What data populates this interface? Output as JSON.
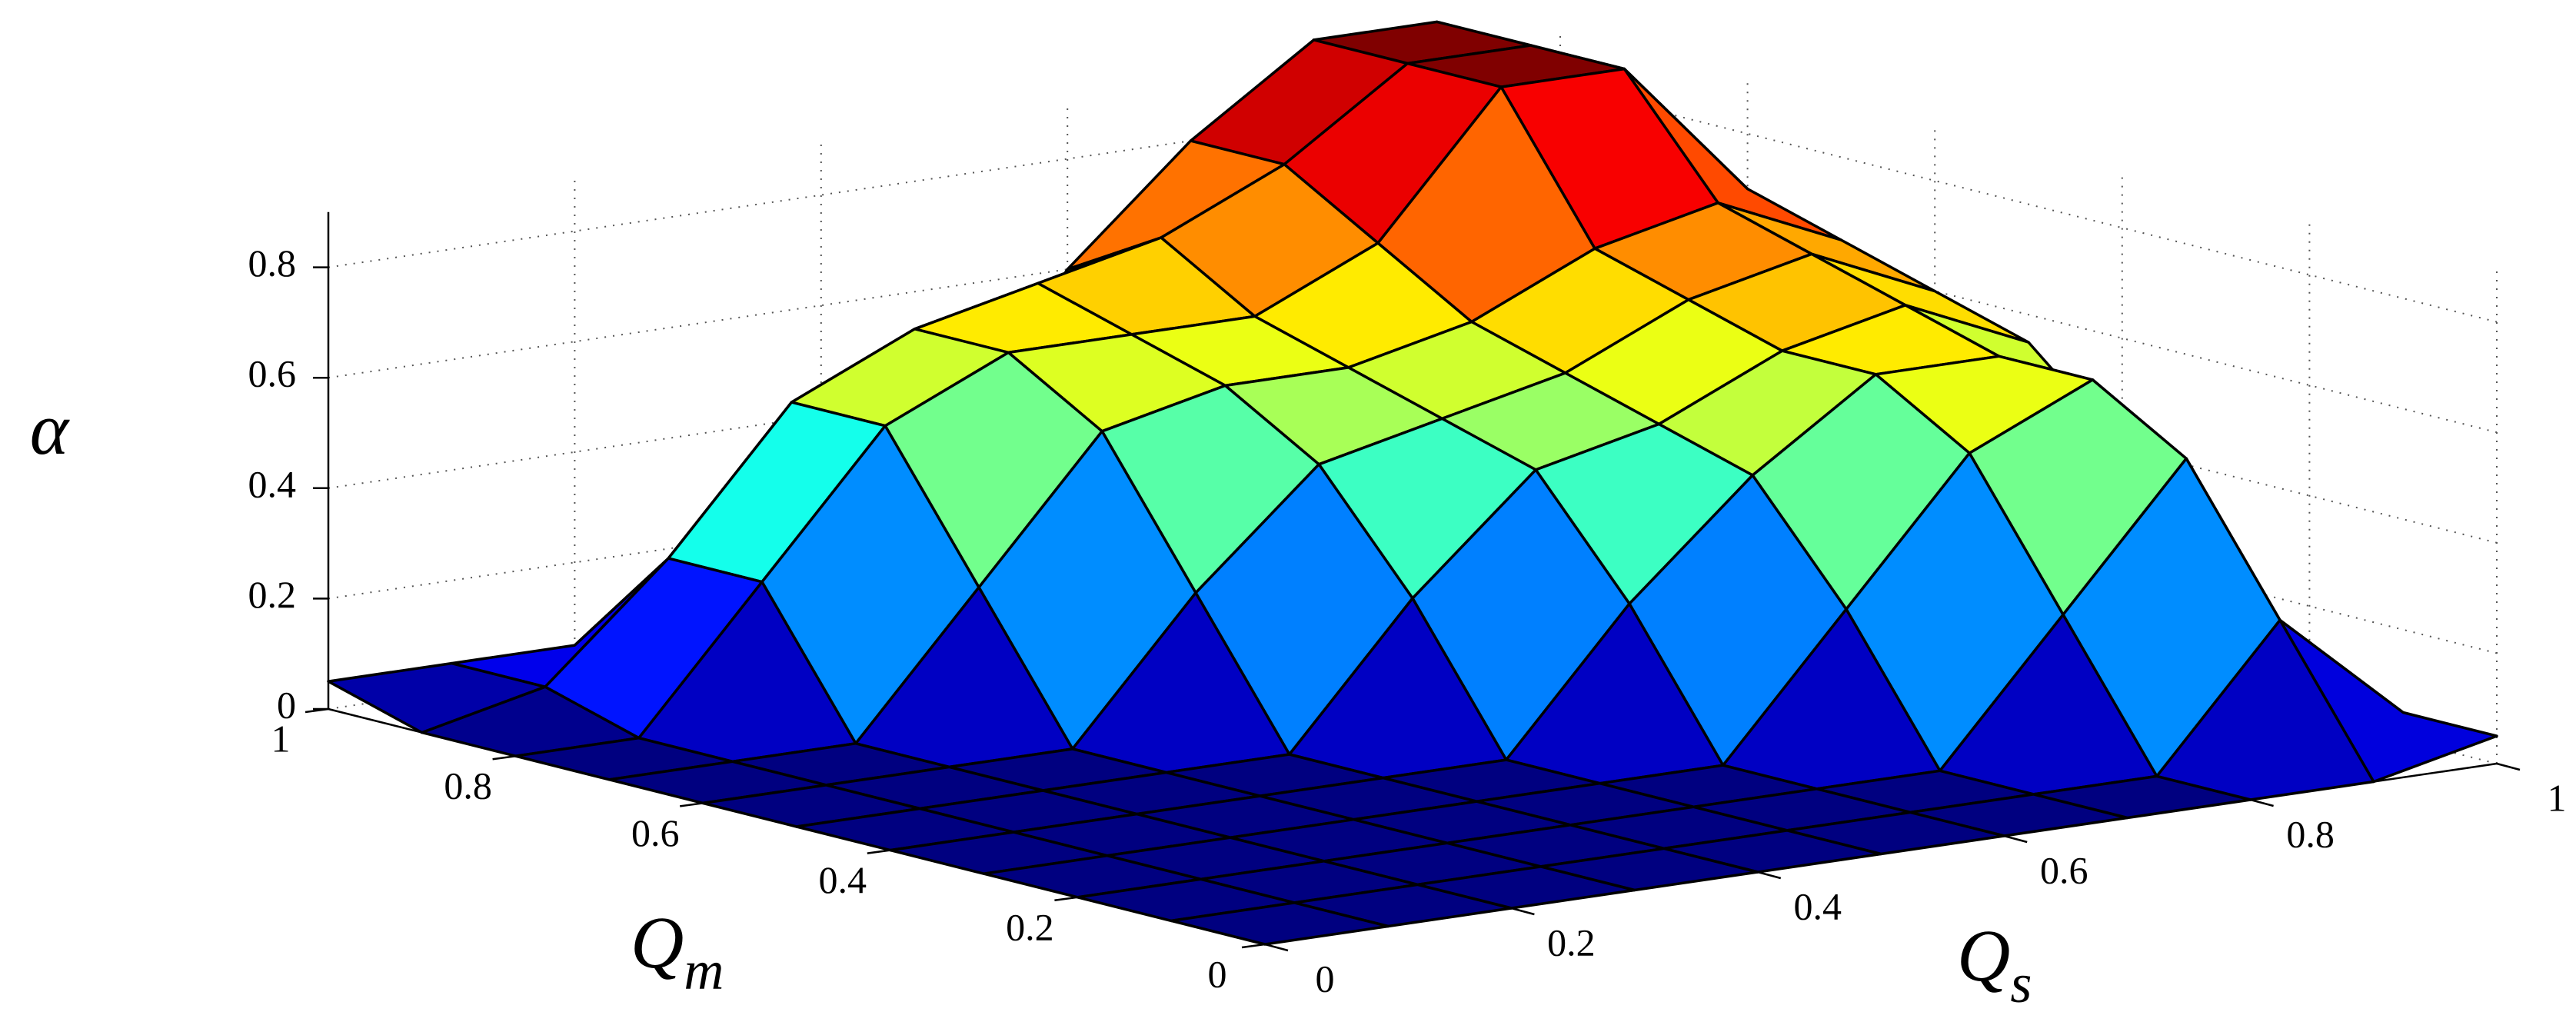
{
  "chart_data": {
    "type": "surface",
    "colormap": "jet",
    "xlabel": {
      "text": "Q",
      "subscript": "s"
    },
    "ylabel": {
      "text": "Q",
      "subscript": "m"
    },
    "zlabel": "α",
    "x": [
      0,
      0.1,
      0.2,
      0.3,
      0.4,
      0.5,
      0.6,
      0.7,
      0.8,
      0.9,
      1
    ],
    "y": [
      0,
      0.1,
      0.2,
      0.3,
      0.4,
      0.5,
      0.6,
      0.7,
      0.8,
      0.9,
      1
    ],
    "z": [
      [
        0,
        0,
        0,
        0,
        0,
        0,
        0,
        0,
        0,
        0,
        0.05
      ],
      [
        0,
        0,
        0,
        0,
        0,
        0,
        0,
        0,
        0,
        0.25,
        0.05
      ],
      [
        0,
        0,
        0,
        0,
        0,
        0,
        0,
        0,
        0.25,
        0.5,
        0.05
      ],
      [
        0,
        0,
        0,
        0,
        0,
        0,
        0,
        0.25,
        0.5,
        0.6,
        0.25
      ],
      [
        0,
        0,
        0,
        0,
        0,
        0,
        0.25,
        0.45,
        0.6,
        0.6,
        0.4
      ],
      [
        0,
        0,
        0,
        0,
        0,
        0.25,
        0.45,
        0.5,
        0.6,
        0.65,
        0.55
      ],
      [
        0,
        0,
        0,
        0,
        0.25,
        0.45,
        0.5,
        0.55,
        0.65,
        0.7,
        0.6
      ],
      [
        0,
        0,
        0,
        0.25,
        0.5,
        0.55,
        0.55,
        0.6,
        0.7,
        0.75,
        0.65
      ],
      [
        0,
        0,
        0.25,
        0.5,
        0.6,
        0.6,
        0.6,
        0.7,
        0.95,
        0.95,
        0.7
      ],
      [
        0,
        0.05,
        0.25,
        0.5,
        0.6,
        0.65,
        0.7,
        0.8,
        0.95,
        0.95,
        0.75
      ],
      [
        0.05,
        0.05,
        0.05,
        0.05,
        0.05,
        0.3,
        0.6,
        0.8,
        0.95,
        0.95,
        0.8
      ]
    ],
    "xlim": [
      0,
      1
    ],
    "ylim": [
      0,
      1
    ],
    "zlim": [
      0,
      0.9
    ],
    "xticks": [
      0,
      0.2,
      0.4,
      0.6,
      0.8,
      1
    ],
    "yticks": [
      0,
      0.2,
      0.4,
      0.6,
      0.8,
      1
    ],
    "zticks": [
      0,
      0.2,
      0.4,
      0.6,
      0.8
    ],
    "grid": true
  }
}
